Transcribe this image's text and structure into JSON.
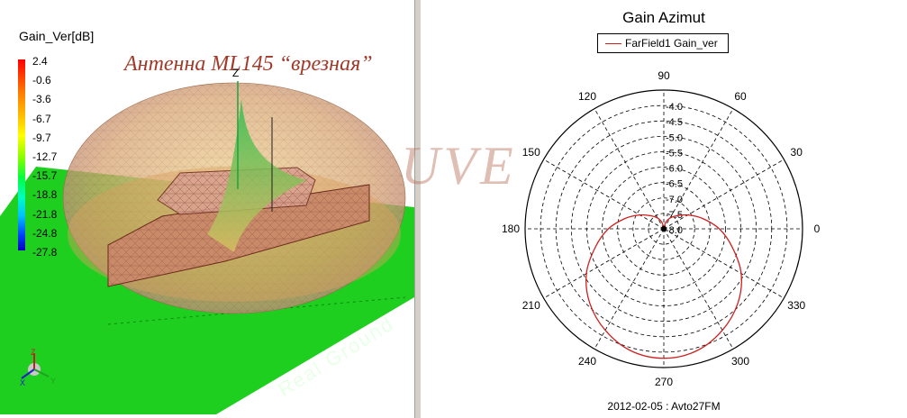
{
  "left_panel": {
    "colorbar_title": "Gain_Ver[dB]",
    "colorbar_ticks": [
      "2.4",
      "-0.6",
      "-3.6",
      "-6.7",
      "-9.7",
      "-12.7",
      "-15.7",
      "-18.8",
      "-21.8",
      "-24.8",
      "-27.8"
    ],
    "title": "Антенна ML145 “врезная”",
    "ground_label": "Real Ground",
    "z_axis_label": "Z",
    "triad_labels": {
      "z": "Z",
      "x": "X",
      "y": "Y"
    }
  },
  "watermark": "UVE",
  "colors": {
    "curve": "#cc2020",
    "ground": "#1fcf1f",
    "lobe": "#d9b070",
    "car": "#c07a60"
  },
  "chart_data": {
    "type": "polar",
    "title": "Gain Azimut",
    "legend": [
      "FarField1 Gain_ver"
    ],
    "angle_labels": [
      "0",
      "30",
      "60",
      "90",
      "120",
      "150",
      "180",
      "210",
      "240",
      "270",
      "300",
      "330"
    ],
    "radial_labels": [
      "-4.0",
      "-4.5",
      "-5.0",
      "-5.5",
      "-6.0",
      "-6.5",
      "-7.0",
      "-7.5",
      "-8.0"
    ],
    "radial_range": [
      -8.0,
      -3.5
    ],
    "series": [
      {
        "name": "FarField1 Gain_ver",
        "angles_deg": [
          0,
          15,
          30,
          45,
          60,
          75,
          90,
          105,
          120,
          135,
          150,
          165,
          180,
          195,
          210,
          225,
          240,
          255,
          270,
          285,
          300,
          315,
          330,
          345,
          360
        ],
        "gain_db": [
          -6.2,
          -6.7,
          -7.1,
          -7.4,
          -7.6,
          -7.8,
          -8.0,
          -7.8,
          -7.6,
          -7.4,
          -7.1,
          -6.7,
          -6.2,
          -5.7,
          -5.1,
          -4.6,
          -4.2,
          -3.9,
          -3.8,
          -3.9,
          -4.2,
          -4.6,
          -5.1,
          -5.7,
          -6.2
        ]
      }
    ],
    "footer": "2012-02-05 : Avto27FM"
  }
}
